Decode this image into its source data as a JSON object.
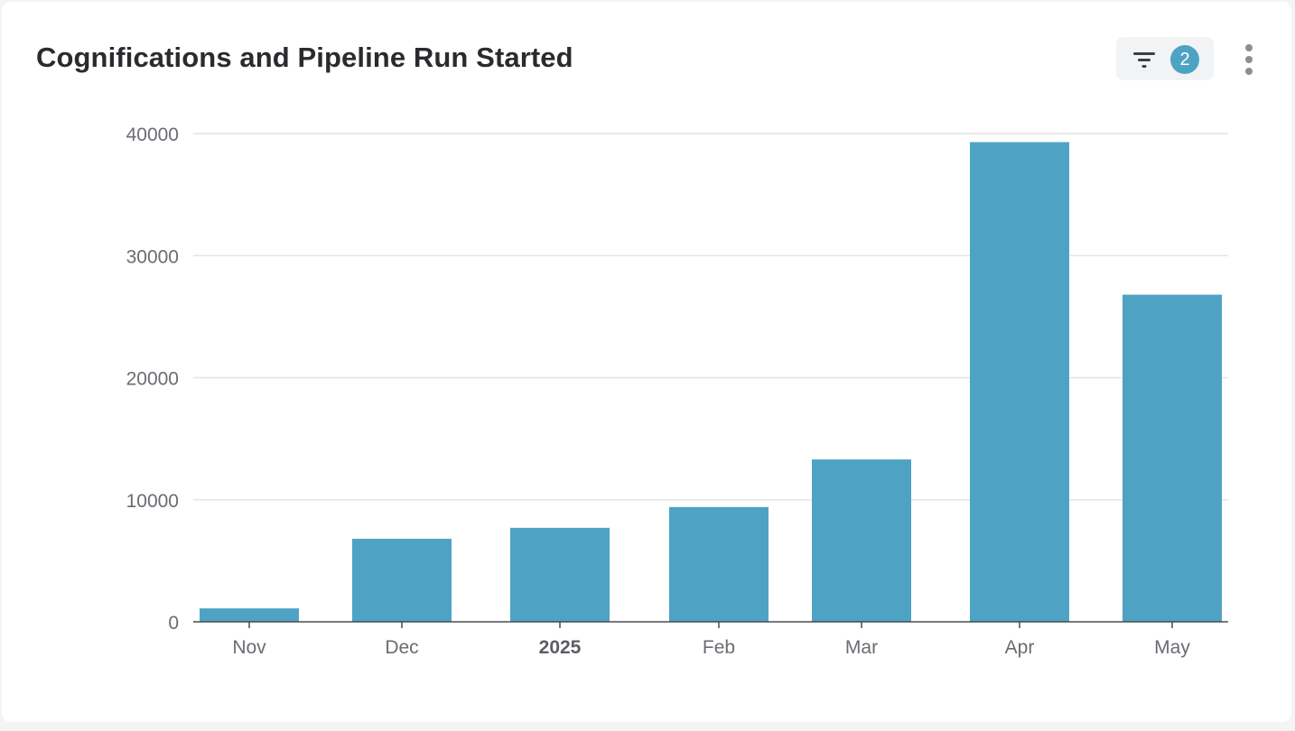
{
  "card": {
    "title": "Cognifications and Pipeline Run Started"
  },
  "toolbar": {
    "filter_icon": "filter-icon",
    "filter_count": "2",
    "menu_icon": "more-vertical-icon"
  },
  "colors": {
    "bar": "#4ea3c4",
    "grid": "#e3e4e7",
    "axis": "#4a4b50",
    "badge": "#4ea3c4"
  },
  "chart_data": {
    "type": "bar",
    "title": "Cognifications and Pipeline Run Started",
    "xlabel": "",
    "ylabel": "",
    "categories": [
      "Nov",
      "Dec",
      "2025",
      "Feb",
      "Mar",
      "Apr",
      "May"
    ],
    "bold_categories": [
      "2025"
    ],
    "values": [
      1100,
      6800,
      7700,
      9400,
      13300,
      39300,
      26800
    ],
    "ylim": [
      0,
      40000
    ],
    "yticks": [
      0,
      10000,
      20000,
      30000,
      40000
    ],
    "ytick_labels": [
      "0",
      "10000",
      "20000",
      "30000",
      "40000"
    ],
    "grid": true,
    "legend": "none"
  }
}
